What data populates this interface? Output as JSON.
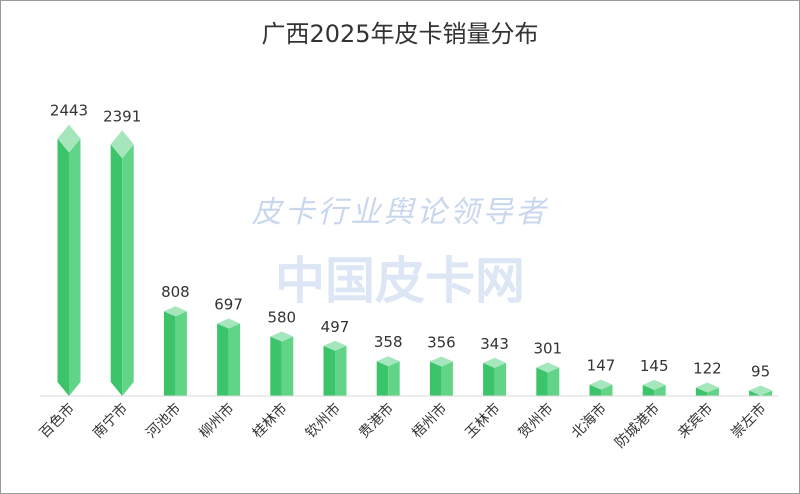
{
  "chart_data": {
    "type": "bar",
    "title": "广西2025年皮卡销量分布",
    "categories": [
      "百色市",
      "南宁市",
      "河池市",
      "柳州市",
      "桂林市",
      "钦州市",
      "贵港市",
      "梧州市",
      "玉林市",
      "贺州市",
      "北海市",
      "防城港市",
      "来宾市",
      "崇左市"
    ],
    "values": [
      2443,
      2391,
      808,
      697,
      580,
      497,
      358,
      356,
      343,
      301,
      147,
      145,
      122,
      95
    ],
    "data_labels": [
      "2443",
      "2391",
      "808",
      "697",
      "580",
      "497",
      "358",
      "356",
      "343",
      "301",
      "147",
      "145",
      "122",
      "95"
    ],
    "ylim": [
      0,
      2700
    ],
    "grid": false,
    "legend": "none",
    "colors": {
      "bar_front": "#3cc46a",
      "bar_side": "#62d488",
      "bar_top": "#a6e6bc",
      "bar_edge": "#2aa555"
    }
  },
  "watermark": {
    "line1": "皮卡行业舆论领导者",
    "line2": "中国皮卡网"
  }
}
